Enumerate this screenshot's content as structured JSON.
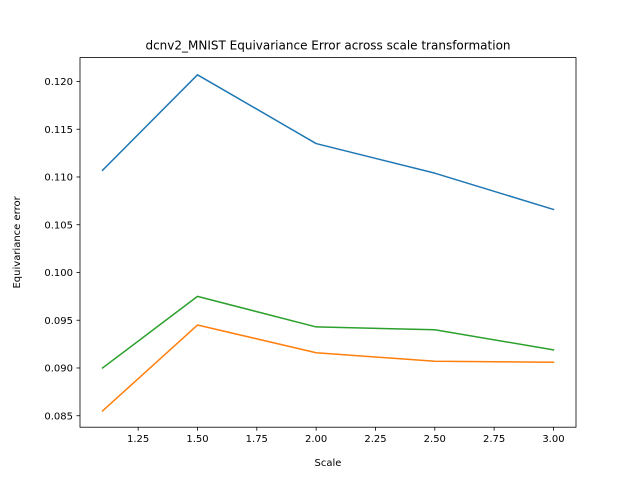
{
  "chart_data": {
    "type": "line",
    "title": "dcnv2_MNIST Equivariance Error across scale transformation",
    "xlabel": "Scale",
    "ylabel": "Equivariance error",
    "xlim": [
      1.005,
      3.095
    ],
    "ylim": [
      0.0838,
      0.1225
    ],
    "xticks": [
      1.25,
      1.5,
      1.75,
      2.0,
      2.25,
      2.5,
      2.75,
      3.0
    ],
    "xtick_labels": [
      "1.25",
      "1.50",
      "1.75",
      "2.00",
      "2.25",
      "2.50",
      "2.75",
      "3.00"
    ],
    "yticks": [
      0.085,
      0.09,
      0.095,
      0.1,
      0.105,
      0.11,
      0.115,
      0.12
    ],
    "ytick_labels": [
      "0.085",
      "0.090",
      "0.095",
      "0.100",
      "0.105",
      "0.110",
      "0.115",
      "0.120"
    ],
    "grid": false,
    "x": [
      1.1,
      1.5,
      2.0,
      2.5,
      3.0
    ],
    "series": [
      {
        "color": "#1f77b4",
        "values": [
          0.1107,
          0.1207,
          0.1135,
          0.1104,
          0.1066
        ]
      },
      {
        "color": "#ff7f0e",
        "values": [
          0.0855,
          0.0945,
          0.0916,
          0.0907,
          0.0906
        ]
      },
      {
        "color": "#2ca02c",
        "values": [
          0.09,
          0.0975,
          0.0943,
          0.094,
          0.0919
        ]
      }
    ]
  }
}
